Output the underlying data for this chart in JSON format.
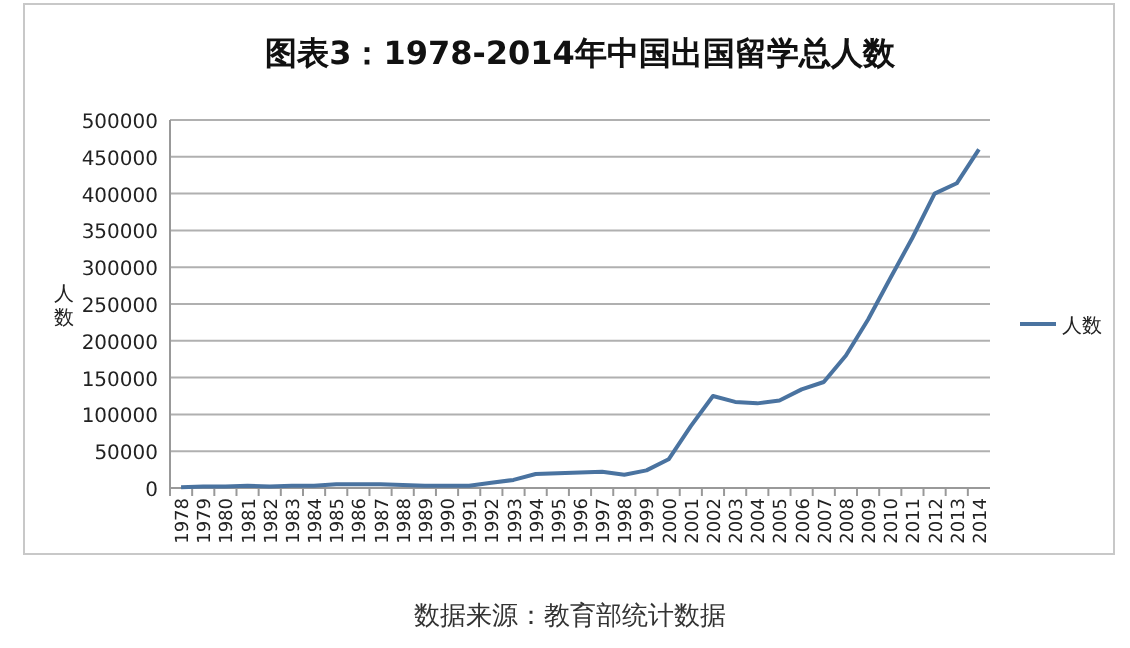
{
  "chart_data": {
    "type": "line",
    "title": "图表3：1978-2014年中国出国留学总人数",
    "ylabel": "人数",
    "categories": [
      "1978",
      "1979",
      "1980",
      "1981",
      "1982",
      "1983",
      "1984",
      "1985",
      "1986",
      "1987",
      "1988",
      "1989",
      "1990",
      "1991",
      "1992",
      "1993",
      "1994",
      "1995",
      "1996",
      "1997",
      "1998",
      "1999",
      "2000",
      "2001",
      "2002",
      "2003",
      "2004",
      "2005",
      "2006",
      "2007",
      "2008",
      "2009",
      "2010",
      "2011",
      "2012",
      "2013",
      "2014"
    ],
    "series": [
      {
        "name": "人数",
        "color": "#4a73a0",
        "values": [
          1000,
          2000,
          2000,
          3000,
          2000,
          3000,
          3000,
          5000,
          5000,
          5000,
          4000,
          3000,
          3000,
          3000,
          7000,
          11000,
          19000,
          20000,
          21000,
          22000,
          18000,
          24000,
          39000,
          84000,
          125000,
          117000,
          115000,
          119000,
          134000,
          144000,
          180000,
          229000,
          285000,
          340000,
          400000,
          414000,
          460000
        ]
      }
    ],
    "ylim": [
      0,
      500000
    ],
    "yticks": [
      0,
      50000,
      100000,
      150000,
      200000,
      250000,
      300000,
      350000,
      400000,
      450000,
      500000
    ],
    "grid": "y",
    "legend": "right",
    "marker": "none",
    "line_style": "solid",
    "annotations": [
      "数据来源：教育部统计数据"
    ]
  }
}
